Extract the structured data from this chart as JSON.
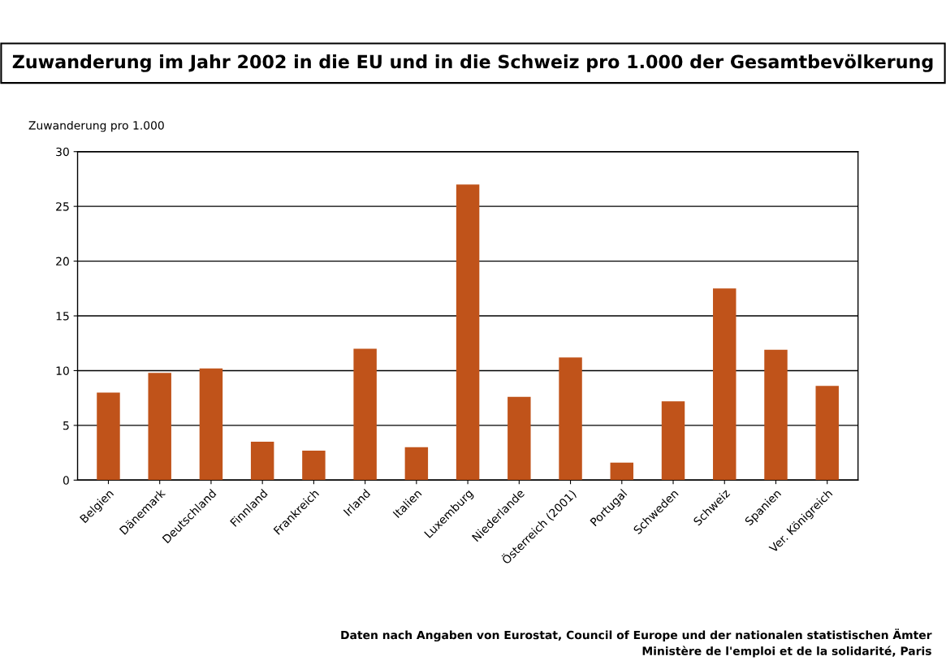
{
  "chart_data": {
    "type": "bar",
    "title": "Zuwanderung im Jahr 2002 in die EU und in die Schweiz pro 1.000 der Gesamtbevölkerung",
    "ylabel": "Zuwanderung pro 1.000",
    "categories": [
      "Belgien",
      "Dänemark",
      "Deutschland",
      "Finnland",
      "Frankreich",
      "Irland",
      "Italien",
      "Luxemburg",
      "Niederlande",
      "Österreich (2001)",
      "Portugal",
      "Schweden",
      "Schweiz",
      "Spanien",
      "Ver. Königreich"
    ],
    "values": [
      8.0,
      9.8,
      10.2,
      3.5,
      2.7,
      12.0,
      3.0,
      27.0,
      7.6,
      11.2,
      1.6,
      7.2,
      17.5,
      11.9,
      8.6
    ],
    "color": "#c0531a",
    "ylim": [
      0,
      30
    ],
    "yticks": [
      0,
      5,
      10,
      15,
      20,
      25,
      30
    ],
    "grid": "y",
    "legend": false,
    "annotations": [
      "Daten nach Angaben von Eurostat, Council of Europe und der nationalen statistischen Ämter",
      "Ministère de l'emploi et de la solidarité, Paris"
    ]
  }
}
